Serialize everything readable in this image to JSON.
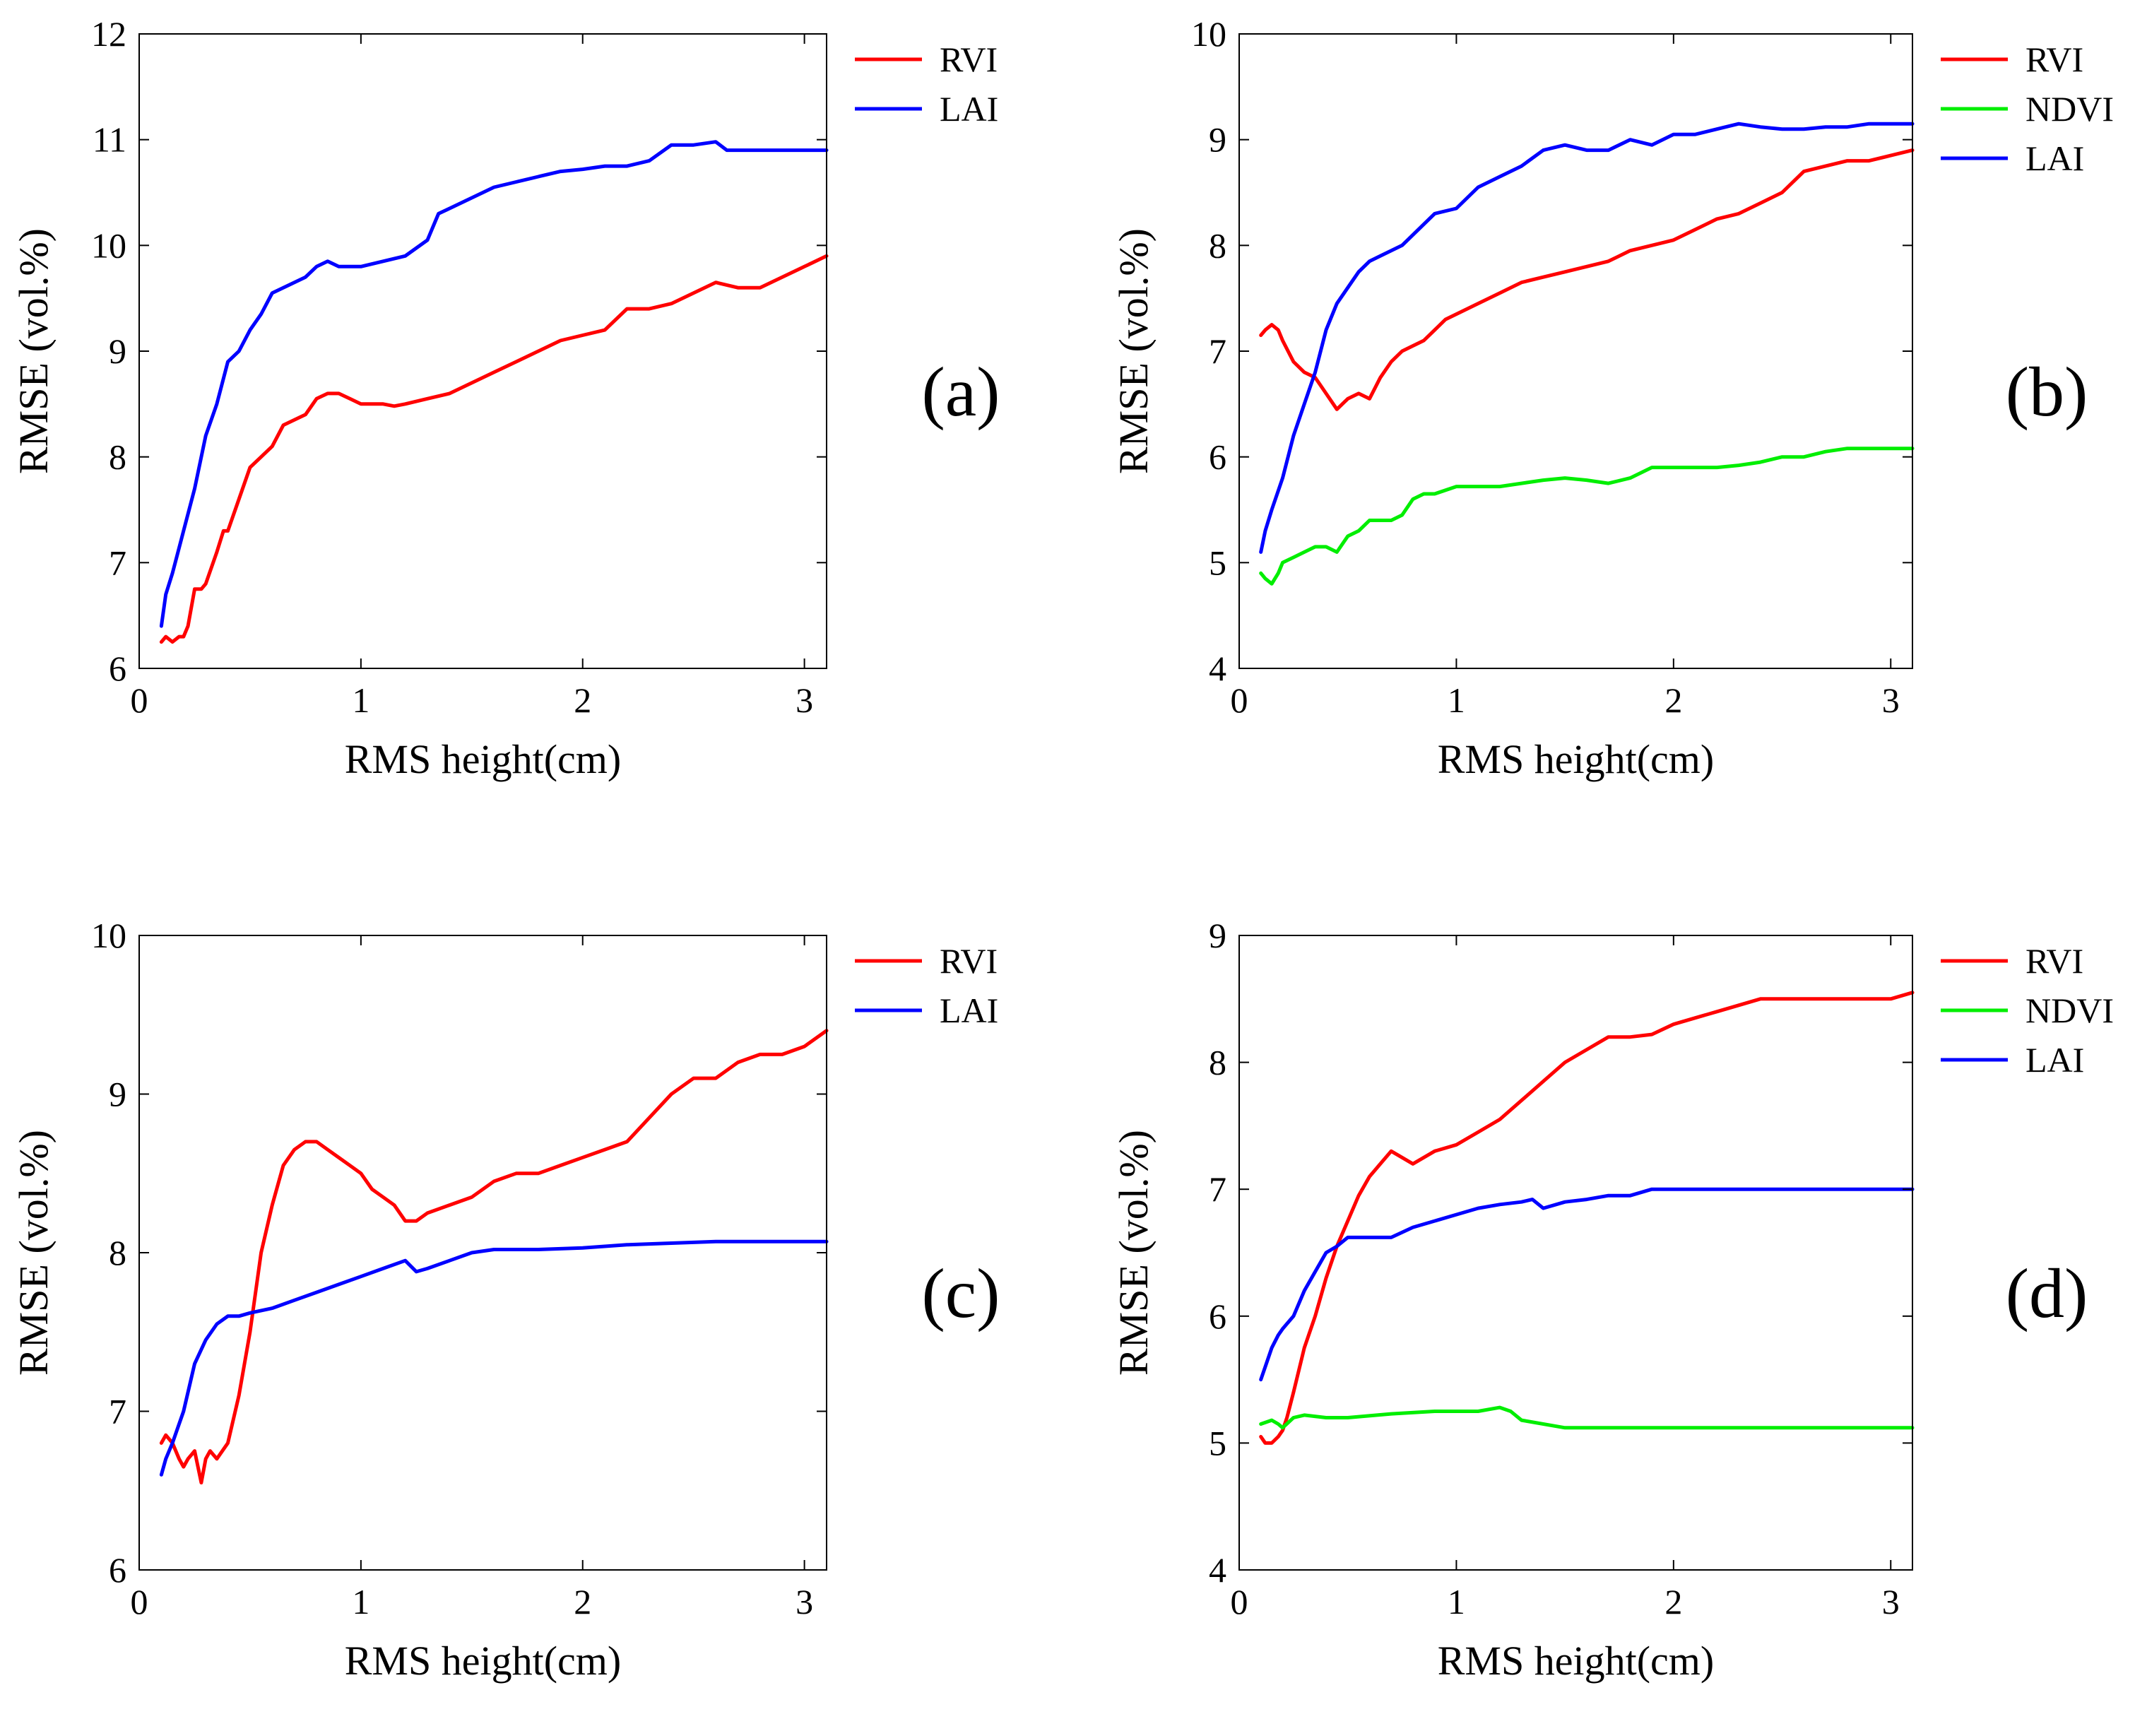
{
  "chart_data": [
    {
      "type": "line",
      "panel_label": "(a)",
      "xlabel": "RMS height(cm)",
      "ylabel": "RMSE (vol.%)",
      "xlim": [
        0,
        3.1
      ],
      "ylim": [
        6,
        12
      ],
      "xticks": [
        0,
        1,
        2,
        3
      ],
      "yticks": [
        6,
        7,
        8,
        9,
        10,
        11,
        12
      ],
      "grid": false,
      "legend_position": "outside-top-right",
      "series": [
        {
          "name": "RVI",
          "color": "#ff0000",
          "x": [
            0.1,
            0.12,
            0.15,
            0.18,
            0.2,
            0.22,
            0.25,
            0.28,
            0.3,
            0.35,
            0.38,
            0.4,
            0.45,
            0.5,
            0.55,
            0.6,
            0.65,
            0.7,
            0.75,
            0.8,
            0.85,
            0.9,
            0.95,
            1.0,
            1.05,
            1.1,
            1.15,
            1.2,
            1.3,
            1.4,
            1.5,
            1.6,
            1.7,
            1.8,
            1.9,
            2.0,
            2.1,
            2.15,
            2.2,
            2.3,
            2.4,
            2.5,
            2.6,
            2.7,
            2.8,
            2.9,
            3.0,
            3.1
          ],
          "y": [
            6.25,
            6.3,
            6.25,
            6.3,
            6.3,
            6.4,
            6.75,
            6.75,
            6.8,
            7.1,
            7.3,
            7.3,
            7.6,
            7.9,
            8.0,
            8.1,
            8.3,
            8.35,
            8.4,
            8.55,
            8.6,
            8.6,
            8.55,
            8.5,
            8.5,
            8.5,
            8.48,
            8.5,
            8.55,
            8.6,
            8.7,
            8.8,
            8.9,
            9.0,
            9.1,
            9.15,
            9.2,
            9.3,
            9.4,
            9.4,
            9.45,
            9.55,
            9.65,
            9.6,
            9.6,
            9.7,
            9.8,
            9.9
          ]
        },
        {
          "name": "LAI",
          "color": "#0000ff",
          "x": [
            0.1,
            0.12,
            0.15,
            0.2,
            0.25,
            0.3,
            0.35,
            0.4,
            0.45,
            0.5,
            0.55,
            0.6,
            0.65,
            0.7,
            0.75,
            0.8,
            0.85,
            0.9,
            1.0,
            1.1,
            1.2,
            1.3,
            1.35,
            1.4,
            1.5,
            1.6,
            1.7,
            1.8,
            1.9,
            2.0,
            2.1,
            2.2,
            2.3,
            2.4,
            2.5,
            2.6,
            2.65,
            2.7,
            2.8,
            2.9,
            3.0,
            3.1
          ],
          "y": [
            6.4,
            6.7,
            6.9,
            7.3,
            7.7,
            8.2,
            8.5,
            8.9,
            9.0,
            9.2,
            9.35,
            9.55,
            9.6,
            9.65,
            9.7,
            9.8,
            9.85,
            9.8,
            9.8,
            9.85,
            9.9,
            10.05,
            10.3,
            10.35,
            10.45,
            10.55,
            10.6,
            10.65,
            10.7,
            10.72,
            10.75,
            10.75,
            10.8,
            10.95,
            10.95,
            10.98,
            10.9,
            10.9,
            10.9,
            10.9,
            10.9,
            10.9
          ]
        }
      ]
    },
    {
      "type": "line",
      "panel_label": "(b)",
      "xlabel": "RMS height(cm)",
      "ylabel": "RMSE (vol.%)",
      "xlim": [
        0,
        3.1
      ],
      "ylim": [
        4,
        10
      ],
      "xticks": [
        0,
        1,
        2,
        3
      ],
      "yticks": [
        4,
        5,
        6,
        7,
        8,
        9,
        10
      ],
      "grid": false,
      "legend_position": "outside-top-right",
      "series": [
        {
          "name": "RVI",
          "color": "#ff0000",
          "x": [
            0.1,
            0.12,
            0.15,
            0.18,
            0.2,
            0.25,
            0.3,
            0.35,
            0.4,
            0.45,
            0.5,
            0.55,
            0.6,
            0.65,
            0.7,
            0.75,
            0.8,
            0.85,
            0.9,
            0.95,
            1.0,
            1.1,
            1.2,
            1.3,
            1.4,
            1.5,
            1.6,
            1.7,
            1.8,
            1.9,
            2.0,
            2.1,
            2.2,
            2.3,
            2.4,
            2.5,
            2.6,
            2.7,
            2.8,
            2.9,
            3.0,
            3.1
          ],
          "y": [
            7.15,
            7.2,
            7.25,
            7.2,
            7.1,
            6.9,
            6.8,
            6.75,
            6.6,
            6.45,
            6.55,
            6.6,
            6.55,
            6.75,
            6.9,
            7.0,
            7.05,
            7.1,
            7.2,
            7.3,
            7.35,
            7.45,
            7.55,
            7.65,
            7.7,
            7.75,
            7.8,
            7.85,
            7.95,
            8.0,
            8.05,
            8.15,
            8.25,
            8.3,
            8.4,
            8.5,
            8.7,
            8.75,
            8.8,
            8.8,
            8.85,
            8.9
          ]
        },
        {
          "name": "NDVI",
          "color": "#00ee00",
          "x": [
            0.1,
            0.12,
            0.15,
            0.18,
            0.2,
            0.25,
            0.3,
            0.35,
            0.4,
            0.45,
            0.5,
            0.55,
            0.6,
            0.65,
            0.7,
            0.75,
            0.8,
            0.85,
            0.9,
            1.0,
            1.1,
            1.2,
            1.3,
            1.4,
            1.5,
            1.6,
            1.7,
            1.8,
            1.9,
            2.0,
            2.2,
            2.3,
            2.4,
            2.5,
            2.6,
            2.7,
            2.8,
            2.9,
            3.0,
            3.1
          ],
          "y": [
            4.9,
            4.85,
            4.8,
            4.9,
            5.0,
            5.05,
            5.1,
            5.15,
            5.15,
            5.1,
            5.25,
            5.3,
            5.4,
            5.4,
            5.4,
            5.45,
            5.6,
            5.65,
            5.65,
            5.72,
            5.72,
            5.72,
            5.75,
            5.78,
            5.8,
            5.78,
            5.75,
            5.8,
            5.9,
            5.9,
            5.9,
            5.92,
            5.95,
            6.0,
            6.0,
            6.05,
            6.08,
            6.08,
            6.08,
            6.08
          ]
        },
        {
          "name": "LAI",
          "color": "#0000ff",
          "x": [
            0.1,
            0.12,
            0.15,
            0.2,
            0.25,
            0.3,
            0.35,
            0.4,
            0.45,
            0.5,
            0.55,
            0.6,
            0.65,
            0.7,
            0.75,
            0.8,
            0.85,
            0.9,
            1.0,
            1.1,
            1.2,
            1.3,
            1.4,
            1.5,
            1.6,
            1.7,
            1.8,
            1.9,
            2.0,
            2.1,
            2.2,
            2.3,
            2.4,
            2.5,
            2.6,
            2.7,
            2.8,
            2.9,
            3.0,
            3.1
          ],
          "y": [
            5.1,
            5.3,
            5.5,
            5.8,
            6.2,
            6.5,
            6.8,
            7.2,
            7.45,
            7.6,
            7.75,
            7.85,
            7.9,
            7.95,
            8.0,
            8.1,
            8.2,
            8.3,
            8.35,
            8.55,
            8.65,
            8.75,
            8.9,
            8.95,
            8.9,
            8.9,
            9.0,
            8.95,
            9.05,
            9.05,
            9.1,
            9.15,
            9.12,
            9.1,
            9.1,
            9.12,
            9.12,
            9.15,
            9.15,
            9.15
          ]
        }
      ]
    },
    {
      "type": "line",
      "panel_label": "(c)",
      "xlabel": "RMS height(cm)",
      "ylabel": "RMSE (vol.%)",
      "xlim": [
        0,
        3.1
      ],
      "ylim": [
        6,
        10
      ],
      "xticks": [
        0,
        1,
        2,
        3
      ],
      "yticks": [
        6,
        7,
        8,
        9,
        10
      ],
      "grid": false,
      "legend_position": "outside-top-right",
      "series": [
        {
          "name": "RVI",
          "color": "#ff0000",
          "x": [
            0.1,
            0.12,
            0.15,
            0.18,
            0.2,
            0.22,
            0.25,
            0.28,
            0.3,
            0.32,
            0.35,
            0.4,
            0.45,
            0.5,
            0.55,
            0.6,
            0.65,
            0.7,
            0.75,
            0.8,
            0.85,
            0.9,
            0.95,
            1.0,
            1.05,
            1.1,
            1.15,
            1.2,
            1.25,
            1.3,
            1.4,
            1.5,
            1.6,
            1.7,
            1.8,
            1.9,
            2.0,
            2.1,
            2.2,
            2.3,
            2.4,
            2.5,
            2.6,
            2.7,
            2.8,
            2.9,
            3.0,
            3.1
          ],
          "y": [
            6.8,
            6.85,
            6.8,
            6.7,
            6.65,
            6.7,
            6.75,
            6.55,
            6.7,
            6.75,
            6.7,
            6.8,
            7.1,
            7.5,
            8.0,
            8.3,
            8.55,
            8.65,
            8.7,
            8.7,
            8.65,
            8.6,
            8.55,
            8.5,
            8.4,
            8.35,
            8.3,
            8.2,
            8.2,
            8.25,
            8.3,
            8.35,
            8.45,
            8.5,
            8.5,
            8.55,
            8.6,
            8.65,
            8.7,
            8.85,
            9.0,
            9.1,
            9.1,
            9.2,
            9.25,
            9.25,
            9.3,
            9.4
          ]
        },
        {
          "name": "LAI",
          "color": "#0000ff",
          "x": [
            0.1,
            0.12,
            0.15,
            0.2,
            0.25,
            0.3,
            0.35,
            0.4,
            0.45,
            0.5,
            0.6,
            0.7,
            0.8,
            0.9,
            1.0,
            1.1,
            1.2,
            1.25,
            1.3,
            1.4,
            1.5,
            1.6,
            1.8,
            2.0,
            2.2,
            2.4,
            2.6,
            2.8,
            3.0,
            3.1
          ],
          "y": [
            6.6,
            6.7,
            6.8,
            7.0,
            7.3,
            7.45,
            7.55,
            7.6,
            7.6,
            7.62,
            7.65,
            7.7,
            7.75,
            7.8,
            7.85,
            7.9,
            7.95,
            7.88,
            7.9,
            7.95,
            8.0,
            8.02,
            8.02,
            8.03,
            8.05,
            8.06,
            8.07,
            8.07,
            8.07,
            8.07
          ]
        }
      ]
    },
    {
      "type": "line",
      "panel_label": "(d)",
      "xlabel": "RMS height(cm)",
      "ylabel": "RMSE (vol.%)",
      "xlim": [
        0,
        3.1
      ],
      "ylim": [
        4,
        9
      ],
      "xticks": [
        0,
        1,
        2,
        3
      ],
      "yticks": [
        4,
        5,
        6,
        7,
        8,
        9
      ],
      "grid": false,
      "legend_position": "outside-top-right",
      "series": [
        {
          "name": "RVI",
          "color": "#ff0000",
          "x": [
            0.1,
            0.12,
            0.15,
            0.18,
            0.2,
            0.22,
            0.25,
            0.3,
            0.35,
            0.4,
            0.45,
            0.5,
            0.55,
            0.6,
            0.65,
            0.7,
            0.75,
            0.8,
            0.9,
            1.0,
            1.1,
            1.2,
            1.3,
            1.4,
            1.5,
            1.6,
            1.7,
            1.8,
            1.9,
            2.0,
            2.1,
            2.2,
            2.3,
            2.4,
            2.6,
            2.8,
            3.0,
            3.1
          ],
          "y": [
            5.05,
            5.0,
            5.0,
            5.05,
            5.1,
            5.2,
            5.4,
            5.75,
            6.0,
            6.3,
            6.55,
            6.75,
            6.95,
            7.1,
            7.2,
            7.3,
            7.25,
            7.2,
            7.3,
            7.35,
            7.45,
            7.55,
            7.7,
            7.85,
            8.0,
            8.1,
            8.2,
            8.2,
            8.22,
            8.3,
            8.35,
            8.4,
            8.45,
            8.5,
            8.5,
            8.5,
            8.5,
            8.55
          ]
        },
        {
          "name": "NDVI",
          "color": "#00ee00",
          "x": [
            0.1,
            0.15,
            0.18,
            0.2,
            0.25,
            0.3,
            0.4,
            0.5,
            0.7,
            0.9,
            1.1,
            1.2,
            1.25,
            1.3,
            1.5,
            1.7,
            2.0,
            2.5,
            3.0,
            3.1
          ],
          "y": [
            5.15,
            5.18,
            5.15,
            5.12,
            5.2,
            5.22,
            5.2,
            5.2,
            5.23,
            5.25,
            5.25,
            5.28,
            5.25,
            5.18,
            5.12,
            5.12,
            5.12,
            5.12,
            5.12,
            5.12
          ]
        },
        {
          "name": "LAI",
          "color": "#0000ff",
          "x": [
            0.1,
            0.12,
            0.15,
            0.18,
            0.2,
            0.25,
            0.3,
            0.35,
            0.4,
            0.45,
            0.5,
            0.6,
            0.7,
            0.8,
            0.9,
            1.0,
            1.1,
            1.2,
            1.3,
            1.35,
            1.4,
            1.5,
            1.6,
            1.7,
            1.8,
            1.9,
            2.0,
            2.5,
            3.0,
            3.1
          ],
          "y": [
            5.5,
            5.6,
            5.75,
            5.85,
            5.9,
            6.0,
            6.2,
            6.35,
            6.5,
            6.55,
            6.62,
            6.62,
            6.62,
            6.7,
            6.75,
            6.8,
            6.85,
            6.88,
            6.9,
            6.92,
            6.85,
            6.9,
            6.92,
            6.95,
            6.95,
            7.0,
            7.0,
            7.0,
            7.0,
            7.0
          ]
        }
      ]
    }
  ]
}
